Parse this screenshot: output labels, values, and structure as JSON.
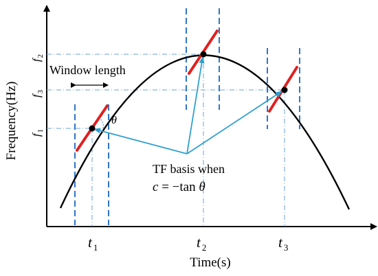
{
  "axes": {
    "xlabel": "Time(s)",
    "ylabel": "Frequency(Hz)"
  },
  "ticks": {
    "x": [
      {
        "main": "t",
        "sub": "1"
      },
      {
        "main": "t",
        "sub": "2"
      },
      {
        "main": "t",
        "sub": "3"
      }
    ],
    "y": [
      {
        "main": "f",
        "sub": "2"
      },
      {
        "main": "f",
        "sub": "3"
      },
      {
        "main": "f",
        "sub": "1"
      }
    ]
  },
  "annotations": {
    "window_length": "Window length",
    "theta": "θ",
    "tf_basis": "TF basis when",
    "equation": {
      "c": "c",
      "rest": " = −tan ",
      "theta": "θ"
    }
  },
  "colors": {
    "curve": "#000000",
    "window_lines": "#2e75c8",
    "guide_lines": "#6aa0d8",
    "arrows": "#2ea0d0",
    "tangent": "#e02020",
    "points": "#000000"
  }
}
